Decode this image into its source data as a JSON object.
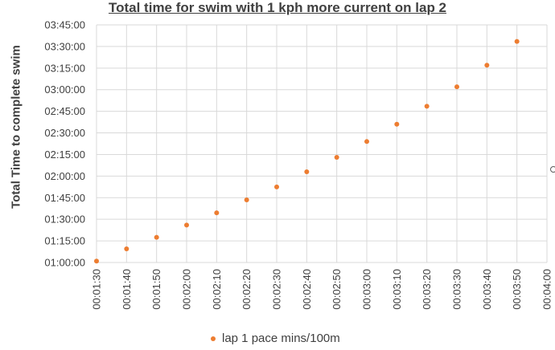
{
  "chart_data": {
    "type": "scatter",
    "title": "Total time for swim with 1 kph more current on lap 2",
    "xlabel": "",
    "ylabel": "Total Time to complete swim",
    "x_ticks": [
      "00:01:30",
      "00:01:40",
      "00:01:50",
      "00:02:00",
      "00:02:10",
      "00:02:20",
      "00:02:30",
      "00:02:40",
      "00:02:50",
      "00:03:00",
      "00:03:10",
      "00:03:20",
      "00:03:30",
      "00:03:40",
      "00:03:50",
      "00:04:00"
    ],
    "y_ticks": [
      "01:00:00",
      "01:15:00",
      "01:30:00",
      "01:45:00",
      "02:00:00",
      "02:15:00",
      "02:30:00",
      "02:45:00",
      "03:00:00",
      "03:15:00",
      "03:30:00",
      "03:45:00"
    ],
    "xlim": [
      "00:01:30",
      "00:04:00"
    ],
    "ylim": [
      "01:00:00",
      "03:45:00"
    ],
    "grid": true,
    "legend_position": "bottom",
    "series": [
      {
        "name": "lap 1 pace mins/100m",
        "color": "#ED7D31",
        "points": [
          {
            "x": "00:01:30",
            "y": "01:01:00"
          },
          {
            "x": "00:01:40",
            "y": "01:09:30"
          },
          {
            "x": "00:01:50",
            "y": "01:17:30"
          },
          {
            "x": "00:02:00",
            "y": "01:26:00"
          },
          {
            "x": "00:02:10",
            "y": "01:34:30"
          },
          {
            "x": "00:02:20",
            "y": "01:43:30"
          },
          {
            "x": "00:02:30",
            "y": "01:52:30"
          },
          {
            "x": "00:02:40",
            "y": "02:03:00"
          },
          {
            "x": "00:02:50",
            "y": "02:13:00"
          },
          {
            "x": "00:03:00",
            "y": "02:24:00"
          },
          {
            "x": "00:03:10",
            "y": "02:36:00"
          },
          {
            "x": "00:03:20",
            "y": "02:48:30"
          },
          {
            "x": "00:03:30",
            "y": "03:02:00"
          },
          {
            "x": "00:03:40",
            "y": "03:17:00"
          },
          {
            "x": "00:03:50",
            "y": "03:33:30"
          }
        ]
      }
    ]
  }
}
